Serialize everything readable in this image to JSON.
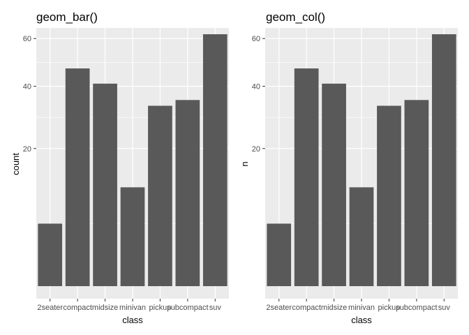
{
  "chart_data": [
    {
      "type": "bar",
      "title": "geom_bar()",
      "xlabel": "class",
      "ylabel": "count",
      "scale": "sqrt",
      "categories": [
        "2seater",
        "compact",
        "midsize",
        "minivan",
        "pickup",
        "subcompact",
        "suv"
      ],
      "values": [
        5,
        47,
        41,
        11,
        33,
        35,
        62
      ],
      "yticks": [
        20,
        40,
        60
      ],
      "ylim": [
        0,
        65
      ],
      "grid": true,
      "bar_color": "#595959",
      "panel_color": "#ebebeb"
    },
    {
      "type": "bar",
      "title": "geom_col()",
      "xlabel": "class",
      "ylabel": "n",
      "scale": "sqrt",
      "categories": [
        "2seater",
        "compact",
        "midsize",
        "minivan",
        "pickup",
        "subcompact",
        "suv"
      ],
      "values": [
        5,
        47,
        41,
        11,
        33,
        35,
        62
      ],
      "yticks": [
        20,
        40,
        60
      ],
      "ylim": [
        0,
        65
      ],
      "grid": true,
      "bar_color": "#595959",
      "panel_color": "#ebebeb"
    }
  ]
}
